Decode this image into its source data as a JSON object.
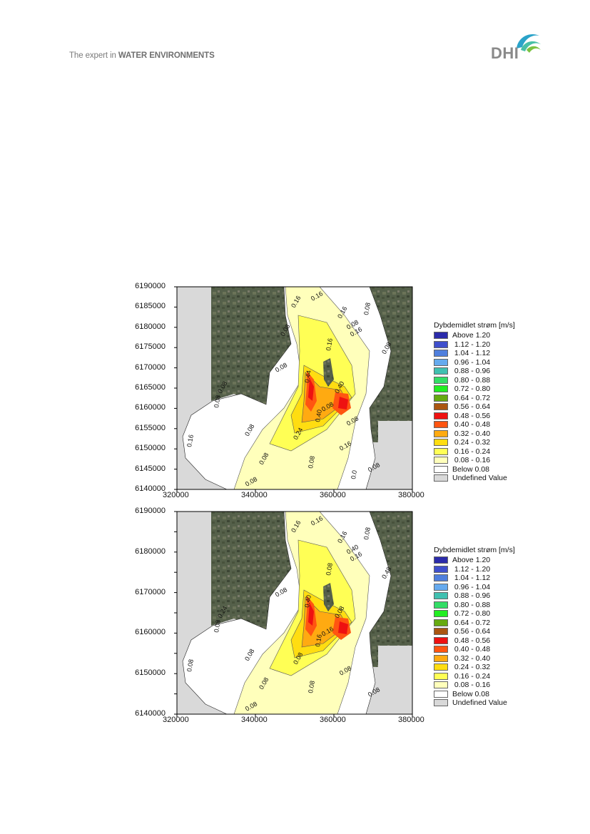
{
  "header": {
    "tagline_prefix": "The expert in ",
    "tagline_bold": "WATER ENVIRONMENTS",
    "logo_text": "DHI"
  },
  "figures": [
    {
      "id": "panel1",
      "y_ticks": [
        "6190000",
        "6185000",
        "6180000",
        "6175000",
        "6170000",
        "6165000",
        "6160000",
        "6155000",
        "6150000",
        "6145000",
        "6140000"
      ],
      "x_ticks": [
        "320000",
        "340000",
        "360000",
        "380000"
      ],
      "contour_labels": [
        "0.16",
        "0.16",
        "0.08",
        "0.16",
        "0.16",
        "0.16",
        "0.08",
        "0.08",
        "0.44",
        "0.40",
        "0.08",
        "0.08",
        "0.08",
        "0.08",
        "0.40",
        "0.24",
        "0.16",
        "0.08",
        "0.08",
        "0.08",
        "0.16",
        "0.08",
        "0.08",
        "0.0",
        "0.08",
        "0.08"
      ],
      "legend_title": "Dybdemidlet strøm [m/s]"
    },
    {
      "id": "panel2",
      "y_ticks": [
        "6190000",
        "",
        "6180000",
        "",
        "6170000",
        "",
        "6160000",
        "",
        "6150000",
        "",
        "6140000"
      ],
      "x_ticks": [
        "320000",
        "340000",
        "360000",
        "380000"
      ],
      "contour_labels": [
        "0.16",
        "0.16",
        "0.08",
        "0.16",
        "0.16",
        "0.08",
        "0.48",
        "0.40",
        "0.40",
        "0.08",
        "0.08",
        "0.08",
        "0.24",
        "0.16",
        "0.16",
        "0.08",
        "0.08",
        "0.08",
        "0.08",
        "0.08",
        "0.08",
        "0.08",
        "0.08"
      ],
      "legend_title": "Dybdemidlet strøm [m/s]"
    }
  ],
  "legend_items": [
    {
      "label": "Above 1.20",
      "color": "#2b2baa"
    },
    {
      "label": " 1.12 - 1.20",
      "color": "#3f4fcc"
    },
    {
      "label": " 1.04 - 1.12",
      "color": "#4f7fdd"
    },
    {
      "label": " 0.96 - 1.04",
      "color": "#66aaee"
    },
    {
      "label": " 0.88 - 0.96",
      "color": "#40c0b0"
    },
    {
      "label": " 0.80 - 0.88",
      "color": "#33dd66"
    },
    {
      "label": " 0.72 - 0.80",
      "color": "#22ee22"
    },
    {
      "label": " 0.64 - 0.72",
      "color": "#66aa11"
    },
    {
      "label": " 0.56 - 0.64",
      "color": "#aa5511"
    },
    {
      "label": " 0.48 - 0.56",
      "color": "#ee1111"
    },
    {
      "label": " 0.40 - 0.48",
      "color": "#ff5511"
    },
    {
      "label": " 0.32 - 0.40",
      "color": "#ffaa11"
    },
    {
      "label": " 0.24 - 0.32",
      "color": "#ffdd11"
    },
    {
      "label": " 0.16 - 0.24",
      "color": "#ffff55"
    },
    {
      "label": " 0.08 - 0.16",
      "color": "#ffffbb"
    },
    {
      "label": "Below 0.08",
      "color": "#ffffff"
    },
    {
      "label": "Undefined Value",
      "color": "#d9d9d9"
    }
  ],
  "colors": {
    "land_gray": "#d9d9d9",
    "satellite": "#4f5a44",
    "water_low": "#ffffcc",
    "hotspot": "#ee1111"
  }
}
